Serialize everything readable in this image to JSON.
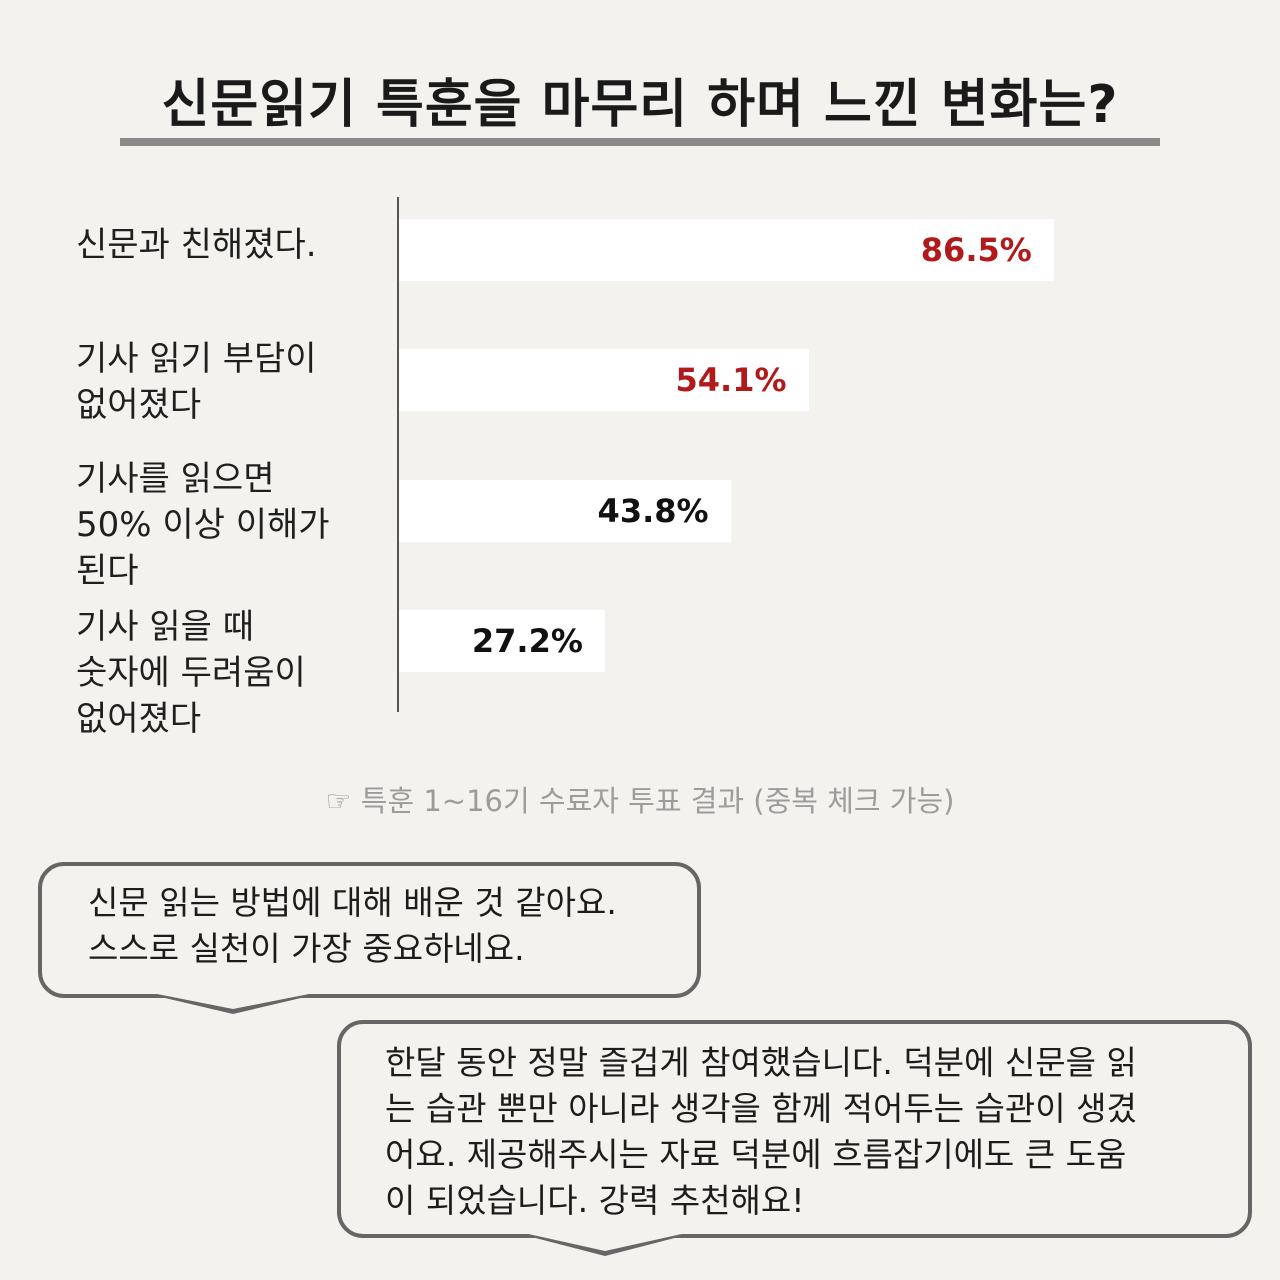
{
  "chart_data": {
    "type": "bar",
    "orientation": "horizontal",
    "title": "신문읽기 특훈을 마무리 하며 느낀 변화는?",
    "categories": [
      "신문과 친해졌다.",
      "기사 읽기 부담이\n없어졌다",
      "기사를 읽으면\n50% 이상 이해가\n된다",
      "기사 읽을 때\n숫자에 두려움이\n없어졌다"
    ],
    "values": [
      86.5,
      54.1,
      43.8,
      27.2
    ],
    "value_labels": [
      "86.5%",
      "54.1%",
      "43.8%",
      "27.2%"
    ],
    "value_label_colors": [
      "#b11a1a",
      "#b11a1a",
      "#111111",
      "#111111"
    ],
    "bar_color": "#ffffff",
    "xlim": [
      0,
      100
    ],
    "grid": false,
    "legend": "none"
  },
  "note": "☞ 특훈 1~16기 수료자 투표 결과 (중복 체크 가능)",
  "comments": [
    "신문 읽는 방법에 대해 배운 것 같아요.\n스스로 실천이 가장 중요하네요.",
    "한달 동안 정말 즐겁게 참여했습니다. 덕분에 신문을 읽\n는 습관 뿐만 아니라 생각을 함께 적어두는 습관이 생겼\n어요. 제공해주시는 자료 덕분에 흐름잡기에도 큰 도움\n이 되었습니다. 강력 추천해요!"
  ]
}
